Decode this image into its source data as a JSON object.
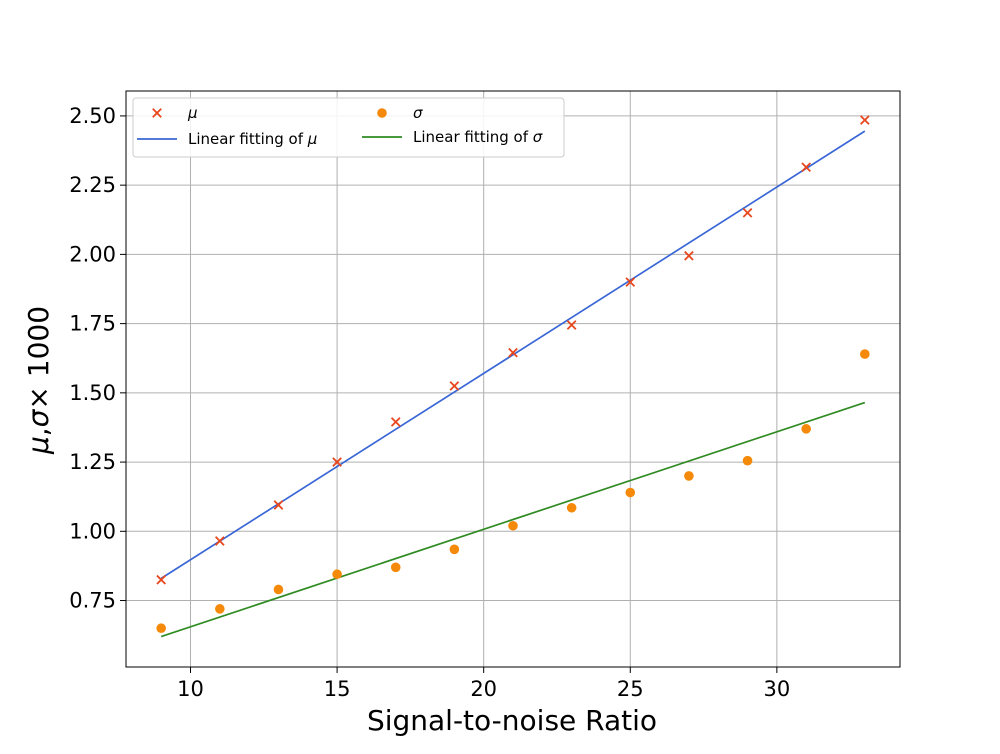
{
  "chart_data": {
    "type": "scatter",
    "title": "",
    "xlabel": "Signal-to-noise Ratio",
    "ylabel": "μ, σ× 1000",
    "xlim": [
      7.8,
      34.2
    ],
    "ylim": [
      0.51,
      2.59
    ],
    "xticks": [
      10,
      15,
      20,
      25,
      30
    ],
    "yticks": [
      0.75,
      1.0,
      1.25,
      1.5,
      1.75,
      2.0,
      2.25,
      2.5
    ],
    "ytick_labels": [
      "0.75",
      "1.00",
      "1.25",
      "1.50",
      "1.75",
      "2.00",
      "2.25",
      "2.50"
    ],
    "grid": true,
    "legend_placement": "upper-left",
    "x": [
      9,
      11,
      13,
      15,
      17,
      19,
      21,
      23,
      25,
      27,
      29,
      31,
      33
    ],
    "series": [
      {
        "name": "μ",
        "kind": "scatter",
        "marker": "x",
        "color": "#e8461c",
        "values": [
          0.825,
          0.965,
          1.095,
          1.25,
          1.395,
          1.525,
          1.645,
          1.745,
          1.9,
          1.995,
          2.15,
          2.315,
          2.485
        ]
      },
      {
        "name": "Linear fitting of μ",
        "kind": "line",
        "color": "#3a67d6",
        "endpoints": [
          [
            9,
            0.83
          ],
          [
            33,
            2.445
          ]
        ]
      },
      {
        "name": "σ",
        "kind": "scatter",
        "marker": "o",
        "color": "#f58a0a",
        "values": [
          0.65,
          0.72,
          0.79,
          0.845,
          0.87,
          0.935,
          1.02,
          1.085,
          1.14,
          1.2,
          1.255,
          1.37,
          1.64
        ]
      },
      {
        "name": "Linear fitting of σ",
        "kind": "line",
        "color": "#2f8b22",
        "endpoints": [
          [
            9,
            0.62
          ],
          [
            33,
            1.465
          ]
        ]
      }
    ]
  }
}
